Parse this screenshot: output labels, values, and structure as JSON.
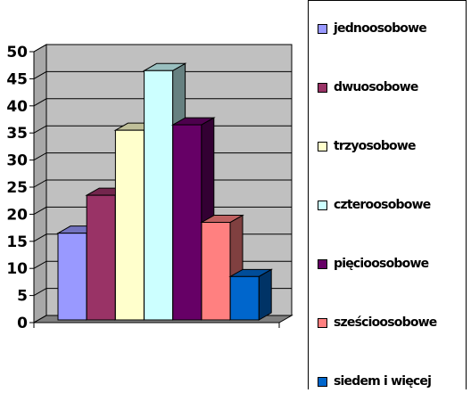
{
  "chart_data": {
    "type": "bar",
    "style": "3d",
    "categories": [
      "jednoosobowe",
      "dwuosobowe",
      "trzyosobowe",
      "czteroosobowe",
      "pięcioosobowe",
      "sześcioosobowe",
      "siedem i więcej"
    ],
    "values": [
      16.5,
      23.5,
      35.5,
      46.5,
      36.5,
      18.5,
      8.5
    ],
    "colors": [
      "#9999ff",
      "#993366",
      "#ffffcc",
      "#ccffff",
      "#660066",
      "#ff8080",
      "#0066cc"
    ],
    "ylim": [
      0,
      50
    ],
    "yticks": [
      "0",
      "5",
      "10",
      "15",
      "20",
      "25",
      "30",
      "35",
      "40",
      "45",
      "50"
    ],
    "wall_color": "#c0c0c0",
    "grid": true,
    "legend_position": "right"
  }
}
